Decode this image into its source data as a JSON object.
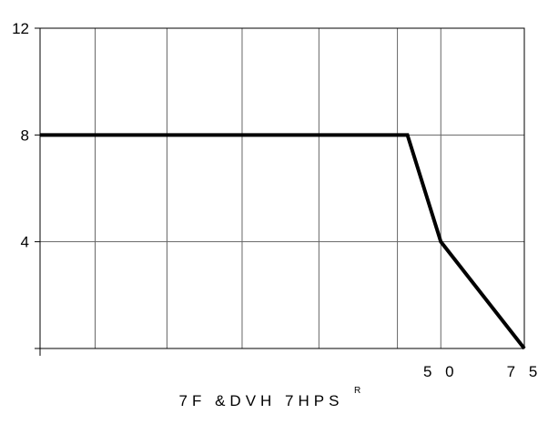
{
  "chart_data": {
    "type": "line",
    "title": "",
    "xlabel": "7F   &DVH 7HPS",
    "xlabel_superscript": "R",
    "ylabel": "",
    "xlim": [
      -70,
      75
    ],
    "ylim": [
      0,
      12
    ],
    "y_ticks": [
      {
        "value": 12,
        "label": "12"
      },
      {
        "value": 8,
        "label": "8"
      },
      {
        "value": 4,
        "label": "4"
      },
      {
        "value": 0,
        "label": ""
      }
    ],
    "x_ticks": [
      {
        "value": 50,
        "label": "5 0"
      },
      {
        "value": 75,
        "label": "7 5"
      }
    ],
    "x_gridlines": [
      -53.5,
      -32,
      -9.5,
      13.5,
      37,
      50
    ],
    "y_gridlines": [
      4,
      8
    ],
    "grid": true,
    "legend": "none",
    "series": [
      {
        "x": [
          -70,
          40,
          50,
          75
        ],
        "y": [
          8,
          8,
          4,
          0
        ]
      }
    ],
    "line_color": "#000000",
    "grid_color": "#666666",
    "frame_color": "#000000"
  }
}
